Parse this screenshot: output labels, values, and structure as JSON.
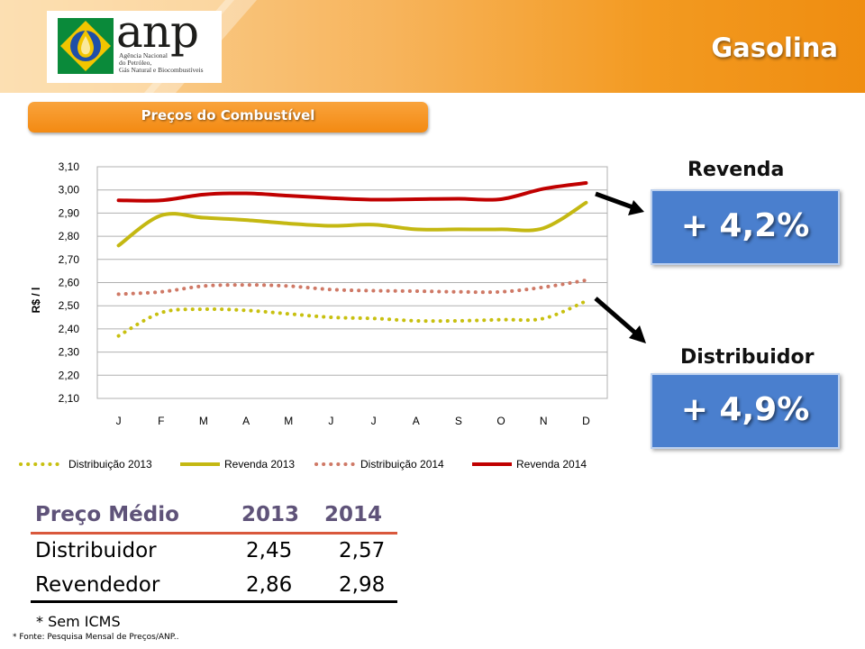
{
  "header": {
    "title": "Gasolina",
    "logo": {
      "wordmark": "anp",
      "subtitle_lines": [
        "Agência Nacional",
        "do Petróleo,",
        "Gás Natural e Biocombustíveis"
      ]
    }
  },
  "section_label": "Preços do Combustível",
  "chart_data": {
    "type": "line",
    "ylabel": "R$ / l",
    "xlabel": "",
    "categories": [
      "J",
      "F",
      "M",
      "A",
      "M",
      "J",
      "J",
      "A",
      "S",
      "O",
      "N",
      "D"
    ],
    "ylim": [
      2.1,
      3.1
    ],
    "yticks": [
      "2,10",
      "2,20",
      "2,30",
      "2,40",
      "2,50",
      "2,60",
      "2,70",
      "2,80",
      "2,90",
      "3,00",
      "3,10"
    ],
    "grid": true,
    "legend_position": "bottom",
    "series": [
      {
        "name": "Distribuição 2013",
        "style": "dotted",
        "color": "#c8c010",
        "values": [
          2.37,
          2.47,
          2.485,
          2.48,
          2.465,
          2.45,
          2.445,
          2.435,
          2.435,
          2.44,
          2.445,
          2.52
        ]
      },
      {
        "name": "Revenda 2013",
        "style": "solid",
        "color": "#c4b812",
        "values": [
          2.76,
          2.89,
          2.88,
          2.87,
          2.855,
          2.845,
          2.85,
          2.83,
          2.83,
          2.83,
          2.835,
          2.945
        ]
      },
      {
        "name": "Distribuição 2014",
        "style": "dotted",
        "color": "#cf7966",
        "values": [
          2.55,
          2.56,
          2.585,
          2.59,
          2.585,
          2.57,
          2.565,
          2.563,
          2.56,
          2.56,
          2.58,
          2.61
        ]
      },
      {
        "name": "Revenda 2014",
        "style": "solid",
        "color": "#c00000",
        "values": [
          2.955,
          2.955,
          2.98,
          2.985,
          2.975,
          2.965,
          2.958,
          2.96,
          2.962,
          2.96,
          3.005,
          3.03
        ]
      }
    ]
  },
  "revenda": {
    "label": "Revenda",
    "change": "+ 4,2%"
  },
  "distribuidor": {
    "label": "Distribuidor",
    "change": "+ 4,9%"
  },
  "colors": {
    "accent_orange": "#f38a12",
    "stat_box": "#4a7fce"
  },
  "table": {
    "headers": [
      "Preço Médio",
      "2013",
      "2014"
    ],
    "rows": [
      {
        "label": "Distribuidor",
        "v2013": "2,45",
        "v2014": "2,57"
      },
      {
        "label": "Revendedor",
        "v2013": "2,86",
        "v2014": "2,98"
      }
    ]
  },
  "note": "* Sem ICMS",
  "source": "*  Fonte: Pesquisa Mensal de Preços/ANP.."
}
